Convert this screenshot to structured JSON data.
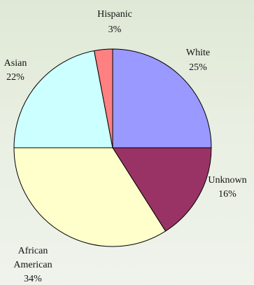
{
  "chart_data": {
    "type": "pie",
    "slices": [
      {
        "label": "White",
        "value": 25,
        "pct_label": "25%",
        "color": "#9999ff"
      },
      {
        "label": "Unknown",
        "value": 16,
        "pct_label": "16%",
        "color": "#993366"
      },
      {
        "label": "African American",
        "value": 34,
        "pct_label": "34%",
        "color": "#ffffcc"
      },
      {
        "label": "Asian",
        "value": 22,
        "pct_label": "22%",
        "color": "#ccffff"
      },
      {
        "label": "Hispanic",
        "value": 3,
        "pct_label": "3%",
        "color": "#ff8080"
      }
    ],
    "start_angle_deg": 0,
    "direction": "clockwise"
  },
  "labels": {
    "white": {
      "line1": "White",
      "line2": "25%"
    },
    "unknown": {
      "line1": "Unknown",
      "line2": "16%"
    },
    "african_american": {
      "line1": "African",
      "line2": "American",
      "line3": "34%"
    },
    "asian": {
      "line1": "Asian",
      "line2": "22%"
    },
    "hispanic": {
      "line1": "Hispanic",
      "line2": "3%"
    }
  }
}
